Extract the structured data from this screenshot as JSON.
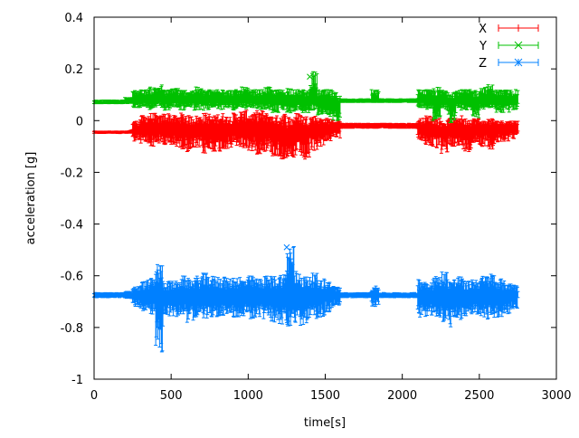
{
  "chart_data": {
    "type": "line",
    "title": "",
    "xlabel": "time[s]",
    "ylabel": "acceleration [g]",
    "xlim": [
      0,
      3000
    ],
    "ylim": [
      -1,
      0.4
    ],
    "xticks": [
      "0",
      "500",
      "1000",
      "1500",
      "2000",
      "2500",
      "3000"
    ],
    "yticks": [
      "-1",
      "-0.8",
      "-0.6",
      "-0.4",
      "-0.2",
      "0",
      "0.2",
      "0.4"
    ],
    "grid": false,
    "legend_position": "top-right",
    "error_bars": true,
    "x": [
      0,
      50,
      100,
      150,
      200,
      250,
      300,
      350,
      400,
      450,
      500,
      550,
      600,
      650,
      700,
      750,
      800,
      850,
      900,
      950,
      1000,
      1050,
      1100,
      1150,
      1200,
      1250,
      1300,
      1350,
      1400,
      1450,
      1500,
      1550,
      1600,
      1650,
      1700,
      1750,
      1800,
      1850,
      1900,
      1950,
      2000,
      2050,
      2100,
      2150,
      2200,
      2250,
      2300,
      2350,
      2400,
      2450,
      2500,
      2550,
      2600,
      2650,
      2700,
      2750
    ],
    "series": [
      {
        "name": "X",
        "color": "#ff0000",
        "marker": "plus",
        "center": [
          -0.045,
          -0.045,
          -0.045,
          -0.045,
          -0.045,
          -0.035,
          -0.03,
          -0.03,
          -0.03,
          -0.03,
          -0.03,
          -0.035,
          -0.04,
          -0.035,
          -0.04,
          -0.035,
          -0.04,
          -0.035,
          -0.03,
          -0.03,
          -0.03,
          -0.035,
          -0.03,
          -0.04,
          -0.05,
          -0.06,
          -0.04,
          -0.05,
          -0.03,
          -0.03,
          -0.03,
          -0.025,
          -0.02,
          -0.02,
          -0.02,
          -0.02,
          -0.02,
          -0.02,
          -0.02,
          -0.02,
          -0.02,
          -0.02,
          -0.03,
          -0.03,
          -0.035,
          -0.04,
          -0.03,
          -0.035,
          -0.04,
          -0.03,
          -0.03,
          -0.035,
          -0.03,
          -0.03,
          -0.025,
          -0.025
        ],
        "min": [
          -0.05,
          -0.05,
          -0.05,
          -0.05,
          -0.05,
          -0.08,
          -0.09,
          -0.1,
          -0.09,
          -0.1,
          -0.1,
          -0.11,
          -0.12,
          -0.11,
          -0.13,
          -0.12,
          -0.12,
          -0.11,
          -0.1,
          -0.11,
          -0.12,
          -0.13,
          -0.12,
          -0.14,
          -0.15,
          -0.17,
          -0.14,
          -0.16,
          -0.12,
          -0.1,
          -0.08,
          -0.07,
          -0.03,
          -0.03,
          -0.03,
          -0.03,
          -0.03,
          -0.03,
          -0.03,
          -0.03,
          -0.03,
          -0.03,
          -0.08,
          -0.1,
          -0.11,
          -0.13,
          -0.1,
          -0.11,
          -0.12,
          -0.09,
          -0.1,
          -0.11,
          -0.09,
          -0.08,
          -0.07,
          -0.06
        ],
        "max": [
          -0.04,
          -0.04,
          -0.04,
          -0.04,
          -0.04,
          0.0,
          0.02,
          0.03,
          0.02,
          0.03,
          0.02,
          0.03,
          0.02,
          0.02,
          0.03,
          0.02,
          0.03,
          0.02,
          0.03,
          0.04,
          0.03,
          0.04,
          0.03,
          0.02,
          0.03,
          0.02,
          0.03,
          0.02,
          0.02,
          0.01,
          0.01,
          0.0,
          -0.01,
          -0.01,
          -0.01,
          -0.01,
          -0.01,
          -0.01,
          -0.01,
          -0.01,
          -0.01,
          -0.01,
          0.01,
          0.02,
          0.01,
          0.0,
          0.01,
          0.02,
          0.01,
          0.01,
          0.0,
          0.01,
          0.0,
          0.0,
          0.0,
          0.0
        ]
      },
      {
        "name": "Y",
        "color": "#00c000",
        "marker": "cross",
        "center": [
          0.07,
          0.07,
          0.07,
          0.07,
          0.075,
          0.085,
          0.085,
          0.08,
          0.085,
          0.08,
          0.085,
          0.08,
          0.08,
          0.085,
          0.08,
          0.08,
          0.085,
          0.08,
          0.08,
          0.085,
          0.08,
          0.08,
          0.085,
          0.08,
          0.08,
          0.075,
          0.08,
          0.075,
          0.08,
          0.07,
          0.065,
          0.06,
          0.075,
          0.075,
          0.075,
          0.075,
          0.075,
          0.075,
          0.075,
          0.075,
          0.075,
          0.075,
          0.085,
          0.08,
          0.07,
          0.08,
          0.065,
          0.08,
          0.08,
          0.07,
          0.085,
          0.085,
          0.08,
          0.075,
          0.08,
          0.085
        ],
        "min": [
          0.065,
          0.065,
          0.065,
          0.065,
          0.065,
          0.05,
          0.05,
          0.04,
          0.05,
          0.04,
          0.05,
          0.04,
          0.05,
          0.04,
          0.04,
          0.05,
          0.04,
          0.05,
          0.04,
          0.04,
          0.05,
          0.04,
          0.04,
          0.03,
          0.04,
          0.03,
          0.04,
          0.03,
          0.04,
          0.02,
          0.01,
          0.0,
          0.07,
          0.07,
          0.07,
          0.07,
          0.07,
          0.07,
          0.07,
          0.07,
          0.07,
          0.07,
          0.05,
          0.04,
          0.0,
          0.04,
          -0.01,
          0.04,
          0.04,
          0.01,
          0.04,
          0.05,
          0.03,
          0.03,
          0.04,
          0.05
        ],
        "max": [
          0.08,
          0.08,
          0.08,
          0.08,
          0.09,
          0.12,
          0.12,
          0.13,
          0.14,
          0.12,
          0.13,
          0.12,
          0.12,
          0.13,
          0.12,
          0.12,
          0.13,
          0.12,
          0.12,
          0.13,
          0.12,
          0.12,
          0.13,
          0.12,
          0.12,
          0.13,
          0.12,
          0.12,
          0.19,
          0.12,
          0.12,
          0.11,
          0.085,
          0.085,
          0.085,
          0.085,
          0.12,
          0.085,
          0.085,
          0.085,
          0.085,
          0.085,
          0.12,
          0.12,
          0.13,
          0.12,
          0.12,
          0.12,
          0.12,
          0.12,
          0.13,
          0.14,
          0.12,
          0.12,
          0.12,
          0.12
        ]
      },
      {
        "name": "Z",
        "color": "#0080ff",
        "marker": "star",
        "center": [
          -0.675,
          -0.675,
          -0.675,
          -0.675,
          -0.675,
          -0.675,
          -0.68,
          -0.68,
          -0.68,
          -0.68,
          -0.68,
          -0.68,
          -0.68,
          -0.68,
          -0.68,
          -0.68,
          -0.68,
          -0.68,
          -0.68,
          -0.68,
          -0.68,
          -0.68,
          -0.68,
          -0.68,
          -0.68,
          -0.68,
          -0.68,
          -0.68,
          -0.68,
          -0.68,
          -0.675,
          -0.675,
          -0.675,
          -0.675,
          -0.675,
          -0.675,
          -0.675,
          -0.675,
          -0.675,
          -0.675,
          -0.675,
          -0.675,
          -0.68,
          -0.68,
          -0.68,
          -0.68,
          -0.68,
          -0.68,
          -0.68,
          -0.68,
          -0.68,
          -0.68,
          -0.68,
          -0.68,
          -0.675,
          -0.675
        ],
        "min": [
          -0.685,
          -0.685,
          -0.685,
          -0.685,
          -0.69,
          -0.72,
          -0.74,
          -0.75,
          -0.9,
          -0.76,
          -0.76,
          -0.75,
          -0.78,
          -0.76,
          -0.77,
          -0.76,
          -0.76,
          -0.75,
          -0.76,
          -0.76,
          -0.77,
          -0.76,
          -0.77,
          -0.78,
          -0.79,
          -0.81,
          -0.8,
          -0.79,
          -0.77,
          -0.76,
          -0.74,
          -0.72,
          -0.685,
          -0.685,
          -0.685,
          -0.685,
          -0.72,
          -0.685,
          -0.685,
          -0.685,
          -0.685,
          -0.685,
          -0.76,
          -0.76,
          -0.77,
          -0.78,
          -0.8,
          -0.78,
          -0.76,
          -0.75,
          -0.76,
          -0.77,
          -0.76,
          -0.75,
          -0.73,
          -0.7
        ],
        "max": [
          -0.665,
          -0.665,
          -0.665,
          -0.665,
          -0.66,
          -0.64,
          -0.62,
          -0.61,
          -0.55,
          -0.62,
          -0.62,
          -0.6,
          -0.61,
          -0.6,
          -0.59,
          -0.6,
          -0.6,
          -0.61,
          -0.6,
          -0.61,
          -0.6,
          -0.61,
          -0.6,
          -0.6,
          -0.59,
          -0.47,
          -0.58,
          -0.6,
          -0.59,
          -0.61,
          -0.62,
          -0.64,
          -0.665,
          -0.665,
          -0.665,
          -0.665,
          -0.64,
          -0.665,
          -0.665,
          -0.665,
          -0.665,
          -0.665,
          -0.61,
          -0.62,
          -0.6,
          -0.58,
          -0.61,
          -0.6,
          -0.62,
          -0.61,
          -0.6,
          -0.59,
          -0.61,
          -0.62,
          -0.63,
          -0.65
        ]
      }
    ]
  }
}
